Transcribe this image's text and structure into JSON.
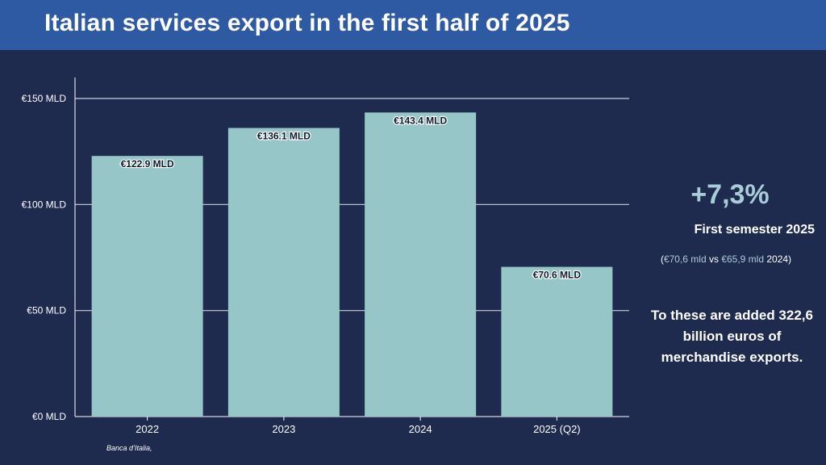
{
  "title": "Italian services export in the first half of 2025",
  "colors": {
    "bar": "#96c6c8",
    "background": "#1f2a4f",
    "header": "#2d5aa2",
    "highlight": "#a9ccd8"
  },
  "chart_data": {
    "type": "bar",
    "categories": [
      "2022",
      "2023",
      "2024",
      "2025 (Q2)"
    ],
    "values": [
      122.9,
      136.1,
      143.4,
      70.6
    ],
    "data_labels": [
      "€122.9 MLD",
      "€136.1 MLD",
      "€143.4 MLD",
      "€70.6 MLD"
    ],
    "yticks": [
      0,
      50,
      100,
      150
    ],
    "ytick_labels": [
      "€0 MLD",
      "€50 MLD",
      "€100 MLD",
      "€150 MLD"
    ],
    "ylim": [
      0,
      150
    ],
    "grid": true
  },
  "side": {
    "growth": "+7,3%",
    "period": "First semester 2025",
    "compare_open": "(",
    "compare_2025": "€70,6 mld",
    "compare_vs": " vs ",
    "compare_2024": "€65,9 mld",
    "compare_close": "  2024)",
    "note": "To these are added 322,6  billion euros of merchandise exports."
  },
  "source": "Banca d’Italia,"
}
